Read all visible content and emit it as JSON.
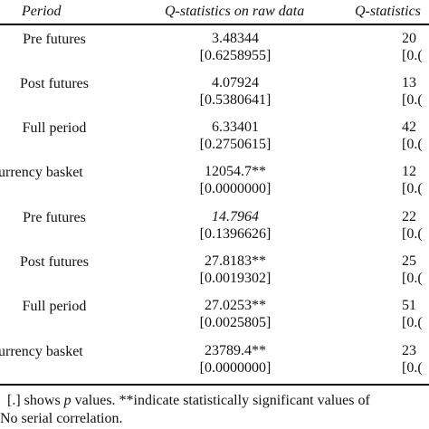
{
  "header": {
    "period": "Period",
    "raw": "Q-statistics on raw data",
    "third": "Q-statistics"
  },
  "rows": [
    {
      "label": "Pre futures",
      "stat": "3.48344",
      "p": "[0.6258955]",
      "third_stat": "20",
      "third_p": "[0.("
    },
    {
      "label": "Post futures",
      "stat": "4.07924",
      "p": "[0.5380641]",
      "third_stat": "13",
      "third_p": "[0.("
    },
    {
      "label": "Full period",
      "stat": "6.33401",
      "p": "[0.2750615]",
      "third_stat": "42",
      "third_p": "[0.("
    },
    {
      "label": "urrency basket",
      "stat": "12054.7**",
      "p": "[0.0000000]",
      "third_stat": "12",
      "third_p": "[0.("
    },
    {
      "label": "Pre futures",
      "stat": "14.7964",
      "p": "[0.1396626]",
      "third_stat": "22",
      "third_p": "[0.("
    },
    {
      "label": "Post futures",
      "stat": "27.8183**",
      "p": "[0.0019302]",
      "third_stat": "25",
      "third_p": "[0.("
    },
    {
      "label": "Full period",
      "stat": "27.0253**",
      "p": "[0.0025805]",
      "third_stat": "51",
      "third_p": "[0.("
    },
    {
      "label": "urrency basket",
      "stat": "23789.4**",
      "p": "[0.0000000]",
      "third_stat": "23",
      "third_p": "[0.("
    }
  ],
  "notes": {
    "line1_pre": "[.] shows ",
    "line1_p": "p",
    "line1_post": " values. **indicate statistically significant values of",
    "line2": "No serial correlation."
  }
}
